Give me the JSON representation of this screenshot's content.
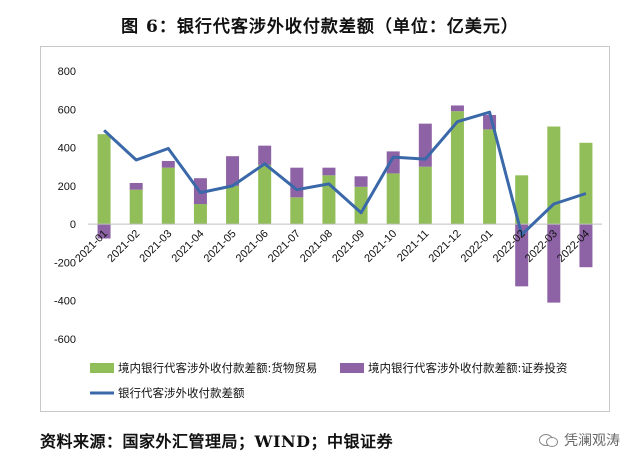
{
  "title": "图 6：银行代客涉外收付款差额（单位：亿美元）",
  "source": "资料来源：国家外汇管理局；WIND；中银证券",
  "watermark": "凭澜观涛",
  "watermark_icon": "wechat-icon",
  "colors": {
    "goods": "#92BE5A",
    "securities": "#8E63A6",
    "net": "#3A68A8"
  },
  "chart_data": {
    "type": "bar",
    "stacked": true,
    "categories": [
      "2021-01",
      "2021-02",
      "2021-03",
      "2021-04",
      "2021-05",
      "2021-06",
      "2021-07",
      "2021-08",
      "2021-09",
      "2021-10",
      "2021-11",
      "2021-12",
      "2022-01",
      "2022-02",
      "2022-03",
      "2022-04"
    ],
    "series": [
      {
        "name": "境内银行代客涉外收付款差额:货物贸易",
        "kind": "bar",
        "values": [
          470,
          180,
          295,
          105,
          200,
          310,
          140,
          255,
          195,
          265,
          300,
          590,
          495,
          255,
          510,
          425
        ]
      },
      {
        "name": "境内银行代客涉外收付款差额:证券投资",
        "kind": "bar",
        "values": [
          -75,
          35,
          35,
          135,
          155,
          100,
          155,
          40,
          55,
          115,
          225,
          30,
          75,
          -325,
          -410,
          -225
        ]
      },
      {
        "name": "银行代客涉外收付款差额",
        "kind": "line",
        "values": [
          490,
          335,
          395,
          165,
          200,
          315,
          180,
          210,
          60,
          350,
          340,
          535,
          585,
          -55,
          105,
          160
        ]
      }
    ],
    "ylim": [
      -600,
      800
    ],
    "yticks": [
      -600,
      -400,
      -200,
      0,
      200,
      400,
      600,
      800
    ],
    "grid": false,
    "legend_position": "bottom"
  }
}
